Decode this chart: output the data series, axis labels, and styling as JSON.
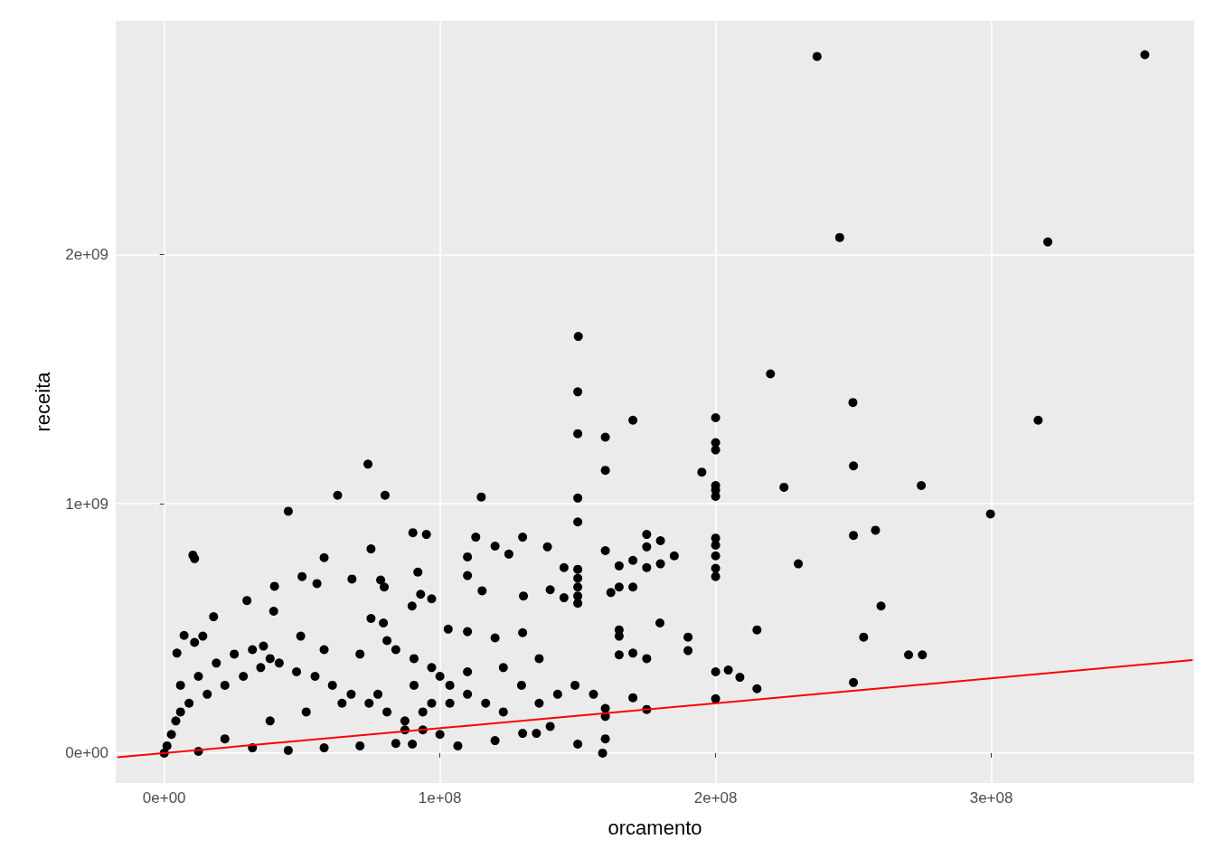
{
  "chart_data": {
    "type": "scatter",
    "xlabel": "orcamento",
    "ylabel": "receita",
    "grid": true,
    "xlim": [
      -17600000.0,
      373600000.0
    ],
    "ylim": [
      -120000000.0,
      2937000000.0
    ],
    "xticks": [
      {
        "value": 0,
        "label": "0e+00"
      },
      {
        "value": 100000000.0,
        "label": "1e+08"
      },
      {
        "value": 200000000.0,
        "label": "2e+08"
      },
      {
        "value": 300000000.0,
        "label": "3e+08"
      }
    ],
    "yticks": [
      {
        "value": 0,
        "label": "0e+00"
      },
      {
        "value": 1000000000.0,
        "label": "1e+09"
      },
      {
        "value": 2000000000.0,
        "label": "2e+09"
      }
    ],
    "series": [
      {
        "color": "#000000",
        "marker": "circle",
        "x": [
          355700000.0,
          236800000.0,
          245000000.0,
          320500000.0,
          150200000.0,
          150000000.0,
          219900000.0,
          249800000.0,
          200000000.0,
          170000000.0,
          317000000.0,
          150000000.0,
          160000000.0,
          200000000.0,
          200000000.0,
          250000000.0,
          73900000.0,
          160000000.0,
          195000000.0,
          200000000.0,
          200000000.0,
          200000000.0,
          224800000.0,
          274600000.0,
          62900000.0,
          80100000.0,
          115000000.0,
          150000000.0,
          299700000.0,
          45000000.0,
          150000000.0,
          90200000.0,
          95100000.0,
          175000000.0,
          258000000.0,
          250000000.0,
          113000000.0,
          130000000.0,
          200000000.0,
          200000000.0,
          200000000.0,
          200000000.0,
          200000000.0,
          180000000.0,
          175000000.0,
          75000000.0,
          160000000.0,
          120000000.0,
          139000000.0,
          10400000.0,
          11000000.0,
          58000000.0,
          125000000.0,
          185000000.0,
          110000000.0,
          170000000.0,
          175000000.0,
          150000000.0,
          150000000.0,
          150000000.0,
          150000000.0,
          150000000.0,
          145000000.0,
          230000000.0,
          180000000.0,
          165000000.0,
          110000000.0,
          50000000.0,
          78500000.0,
          68100000.0,
          55400000.0,
          79800000.0,
          40000000.0,
          92000000.0,
          165000000.0,
          170000000.0,
          93000000.0,
          97000000.0,
          30000000.0,
          145000000.0,
          130300000.0,
          115300000.0,
          260000000.0,
          140000000.0,
          162000000.0,
          39700000.0,
          17900000.0,
          89900000.0,
          75000000.0,
          79500000.0,
          179800000.0,
          165000000.0,
          165000000.0,
          215000000.0,
          103000000.0,
          110000000.0,
          253700000.0,
          190000000.0,
          190000000.0,
          130000000.0,
          120000000.0,
          7200000.0,
          11000000.0,
          49500000.0,
          36000000.0,
          270000000.0,
          275000000.0,
          170000000.0,
          165000000.0,
          175000000.0,
          204600000.0,
          200000000.0,
          208800000.0,
          215000000.0,
          250000000.0,
          200000000.0,
          170000000.0,
          175000000.0,
          160000000.0,
          160000000.0,
          140000000.0,
          150000000.0,
          160000000.0,
          159000000.0,
          130000000.0,
          135000000.0,
          106500000.0,
          90000000.0,
          120000000.0,
          0,
          1000000.0,
          2600000.0,
          4200000.0,
          5900000.0,
          9000000.0,
          15600000.0,
          22000000.0,
          28700000.0,
          35000000.0,
          41700000.0,
          48000000.0,
          54700000.0,
          61000000.0,
          67800000.0,
          74300000.0,
          80800000.0,
          87300000.0,
          93800000.0,
          100000000.0,
          22000000.0,
          32000000.0,
          45000000.0,
          58000000.0,
          71000000.0,
          84000000.0,
          12400000.0,
          38400000.0,
          51500000.0,
          64500000.0,
          77500000.0,
          90600000.0,
          12400000.0,
          18900000.0,
          25400000.0,
          32000000.0,
          5900000.0,
          4600000.0,
          14000000.0,
          38400000.0,
          58000000.0,
          71000000.0,
          80800000.0,
          84000000.0,
          90600000.0,
          97000000.0,
          100000000.0,
          103600000.0,
          110000000.0,
          116600000.0,
          123000000.0,
          136000000.0,
          142700000.0,
          149000000.0,
          155700000.0,
          129600000.0,
          123000000.0,
          136000000.0,
          110000000.0,
          103600000.0,
          93800000.0,
          87300000.0,
          97000000.0
        ],
        "values": [
          2801000000.0,
          2794000000.0,
          2068000000.0,
          2050000000.0,
          1671000000.0,
          1449000000.0,
          1521000000.0,
          1406000000.0,
          1345000000.0,
          1335000000.0,
          1335000000.0,
          1281000000.0,
          1267000000.0,
          1245000000.0,
          1216000000.0,
          1152000000.0,
          1159000000.0,
          1134000000.0,
          1127000000.0,
          1073000000.0,
          1055000000.0,
          1030000000.0,
          1066000000.0,
          1073000000.0,
          1034000000.0,
          1034000000.0,
          1027000000.0,
          1023000000.0,
          959000000.0,
          970000000.0,
          927000000.0,
          884000000.0,
          877000000.0,
          877000000.0,
          894000000.0,
          873000000.0,
          866000000.0,
          866000000.0,
          862000000.0,
          834000000.0,
          791000000.0,
          741000000.0,
          708000000.0,
          852000000.0,
          827000000.0,
          819000000.0,
          812000000.0,
          830000000.0,
          827000000.0,
          794000000.0,
          780000000.0,
          784000000.0,
          798000000.0,
          791000000.0,
          787000000.0,
          773000000.0,
          744000000.0,
          737000000.0,
          701000000.0,
          666000000.0,
          630000000.0,
          601000000.0,
          744000000.0,
          759000000.0,
          759000000.0,
          751000000.0,
          712000000.0,
          708000000.0,
          694000000.0,
          698000000.0,
          680000000.0,
          666000000.0,
          669000000.0,
          726000000.0,
          666000000.0,
          666000000.0,
          637000000.0,
          619000000.0,
          612000000.0,
          623000000.0,
          630000000.0,
          651000000.0,
          590000000.0,
          655000000.0,
          644000000.0,
          569000000.0,
          547000000.0,
          590000000.0,
          540000000.0,
          522000000.0,
          522000000.0,
          494000000.0,
          469000000.0,
          494000000.0,
          497000000.0,
          487000000.0,
          465000000.0,
          465000000.0,
          411000000.0,
          483000000.0,
          462000000.0,
          472000000.0,
          444000000.0,
          469000000.0,
          429000000.0,
          394000000.0,
          394000000.0,
          401000000.0,
          394000000.0,
          379000000.0,
          333000000.0,
          326000000.0,
          304000000.0,
          258000000.0,
          283000000.0,
          218000000.0,
          222000000.0,
          175000000.0,
          179000000.0,
          147000000.0,
          107000000.0,
          36000000.0,
          57000000.0,
          0,
          79000000.0,
          79000000.0,
          29000000.0,
          36000000.0,
          50000000.0,
          0,
          29000000.0,
          75000000.0,
          129000000.0,
          165000000.0,
          200000000.0,
          236000000.0,
          272000000.0,
          308000000.0,
          343000000.0,
          361000000.0,
          326000000.0,
          308000000.0,
          272000000.0,
          236000000.0,
          200000000.0,
          165000000.0,
          129000000.0,
          93000000.0,
          75000000.0,
          57000000.0,
          21000000.0,
          11000000.0,
          21000000.0,
          29000000.0,
          39000000.0,
          7000000.0,
          129000000.0,
          165000000.0,
          200000000.0,
          236000000.0,
          272000000.0,
          308000000.0,
          361000000.0,
          397000000.0,
          415000000.0,
          272000000.0,
          401000000.0,
          469000000.0,
          379000000.0,
          415000000.0,
          397000000.0,
          451000000.0,
          415000000.0,
          379000000.0,
          343000000.0,
          308000000.0,
          272000000.0,
          236000000.0,
          200000000.0,
          165000000.0,
          200000000.0,
          236000000.0,
          272000000.0,
          236000000.0,
          272000000.0,
          343000000.0,
          379000000.0,
          326000000.0,
          200000000.0,
          165000000.0,
          93000000.0,
          200000000.0
        ]
      },
      {
        "type": "line",
        "color": "#ff0000",
        "marker": "none",
        "x": [
          -17000000.0,
          373000000.0
        ],
        "values": [
          -17000000.0,
          373000000.0
        ]
      }
    ]
  }
}
